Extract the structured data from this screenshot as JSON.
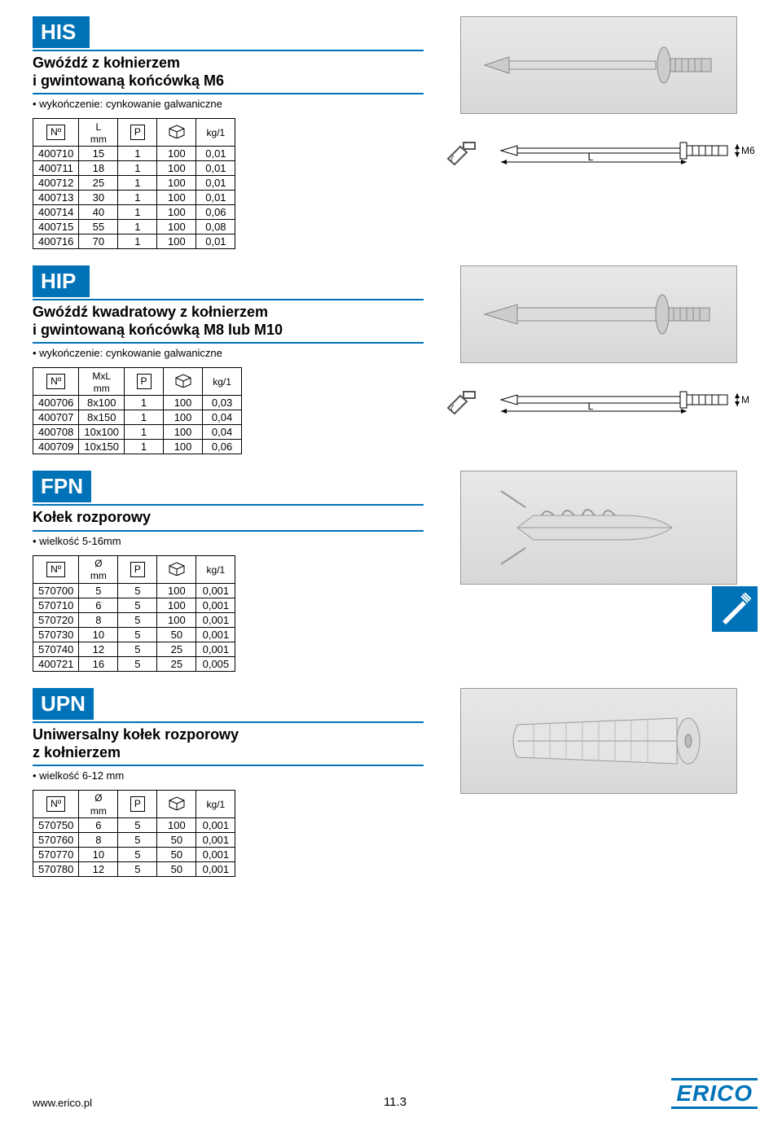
{
  "colors": {
    "brand": "#0073b8",
    "text": "#000000",
    "img_bg": "#e0e0e0"
  },
  "footer": {
    "url": "www.erico.pl",
    "page": "11.3",
    "logo": "ERICO"
  },
  "side_icon_name": "screw-anchor-icon",
  "sections": {
    "his": {
      "code": "HIS",
      "title_l1": "Gwóźdź z kołnierzem",
      "title_l2": "i gwintowaną końcówką M6",
      "sub": "• wykończenie: cynkowanie galwaniczne",
      "columns": [
        "Nº",
        "L\nmm",
        "P",
        "📦",
        "kg/1"
      ],
      "rows": [
        [
          "400710",
          "15",
          "1",
          "100",
          "0,01"
        ],
        [
          "400711",
          "18",
          "1",
          "100",
          "0,01"
        ],
        [
          "400712",
          "25",
          "1",
          "100",
          "0,01"
        ],
        [
          "400713",
          "30",
          "1",
          "100",
          "0,01"
        ],
        [
          "400714",
          "40",
          "1",
          "100",
          "0,06"
        ],
        [
          "400715",
          "55",
          "1",
          "100",
          "0,08"
        ],
        [
          "400716",
          "70",
          "1",
          "100",
          "0,01"
        ]
      ],
      "dim_label_L": "L",
      "dim_label_M": "M6"
    },
    "hip": {
      "code": "HIP",
      "title_l1": "Gwóźdź kwadratowy z kołnierzem",
      "title_l2": "i gwintowaną końcówką M8 lub M10",
      "sub": "• wykończenie: cynkowanie galwaniczne",
      "columns": [
        "Nº",
        "MxL\nmm",
        "P",
        "📦",
        "kg/1"
      ],
      "rows": [
        [
          "400706",
          "8x100",
          "1",
          "100",
          "0,03"
        ],
        [
          "400707",
          "8x150",
          "1",
          "100",
          "0,04"
        ],
        [
          "400708",
          "10x100",
          "1",
          "100",
          "0,04"
        ],
        [
          "400709",
          "10x150",
          "1",
          "100",
          "0,06"
        ]
      ],
      "dim_label_L": "L",
      "dim_label_M": "M"
    },
    "fpn": {
      "code": "FPN",
      "title_l1": "Kołek rozporowy",
      "sub": "• wielkość 5-16mm",
      "columns": [
        "Nº",
        "Ø\nmm",
        "P",
        "📦",
        "kg/1"
      ],
      "rows": [
        [
          "570700",
          "5",
          "5",
          "100",
          "0,001"
        ],
        [
          "570710",
          "6",
          "5",
          "100",
          "0,001"
        ],
        [
          "570720",
          "8",
          "5",
          "100",
          "0,001"
        ],
        [
          "570730",
          "10",
          "5",
          "50",
          "0,001"
        ],
        [
          "570740",
          "12",
          "5",
          "25",
          "0,001"
        ],
        [
          "400721",
          "16",
          "5",
          "25",
          "0,005"
        ]
      ]
    },
    "upn": {
      "code": "UPN",
      "title_l1": "Uniwersalny kołek rozporowy",
      "title_l2": "z kołnierzem",
      "sub": "• wielkość 6-12 mm",
      "columns": [
        "Nº",
        "Ø\nmm",
        "P",
        "📦",
        "kg/1"
      ],
      "rows": [
        [
          "570750",
          "6",
          "5",
          "100",
          "0,001"
        ],
        [
          "570760",
          "8",
          "5",
          "50",
          "0,001"
        ],
        [
          "570770",
          "10",
          "5",
          "50",
          "0,001"
        ],
        [
          "570780",
          "12",
          "5",
          "50",
          "0,001"
        ]
      ]
    }
  }
}
